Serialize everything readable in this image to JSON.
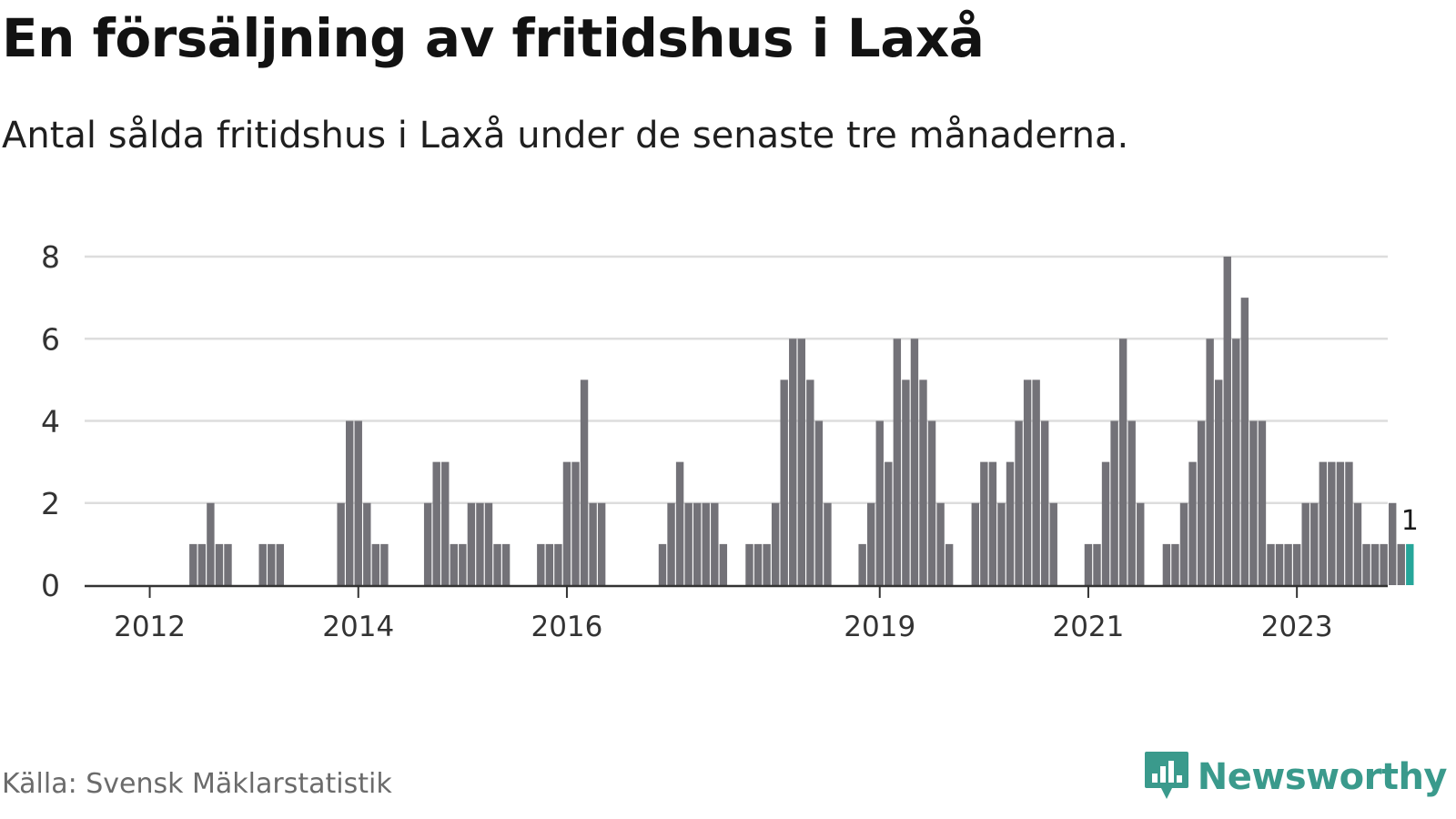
{
  "title": "En försäljning av fritidshus i Laxå",
  "subtitle": "Antal sålda fritidshus i Laxå under de senaste tre månaderna.",
  "source": "Källa: Svensk Mäklarstatistik",
  "brand": "Newsworthy",
  "colors": {
    "bar": "#737278",
    "highlight": "#26a69a",
    "brand": "#3a9a8c",
    "grid": "#dddddd",
    "axis": "#333333"
  },
  "chart_data": {
    "type": "bar",
    "x_axis_ticks": [
      "2012",
      "2014",
      "2016",
      "2019",
      "2021",
      "2023"
    ],
    "y_axis_ticks": [
      "0",
      "2",
      "4",
      "6",
      "8"
    ],
    "ylim": [
      0,
      8
    ],
    "grid": true,
    "highlight_label": "1",
    "values": [
      0,
      0,
      0,
      0,
      0,
      0,
      0,
      0,
      0,
      0,
      0,
      0,
      1,
      1,
      2,
      1,
      1,
      0,
      0,
      0,
      1,
      1,
      1,
      0,
      0,
      0,
      0,
      0,
      0,
      2,
      4,
      4,
      2,
      1,
      1,
      0,
      0,
      0,
      0,
      2,
      3,
      3,
      1,
      1,
      2,
      2,
      2,
      1,
      1,
      0,
      0,
      0,
      1,
      1,
      1,
      3,
      3,
      5,
      2,
      2,
      0,
      0,
      0,
      0,
      0,
      0,
      1,
      2,
      3,
      2,
      2,
      2,
      2,
      1,
      0,
      0,
      1,
      1,
      1,
      2,
      5,
      6,
      6,
      5,
      4,
      2,
      0,
      0,
      0,
      1,
      2,
      4,
      3,
      6,
      5,
      6,
      5,
      4,
      2,
      1,
      0,
      0,
      2,
      3,
      3,
      2,
      3,
      4,
      5,
      5,
      4,
      2,
      0,
      0,
      0,
      1,
      1,
      3,
      4,
      6,
      4,
      2,
      0,
      0,
      1,
      1,
      2,
      3,
      4,
      6,
      5,
      8,
      6,
      7,
      4,
      4,
      1,
      1,
      1,
      1,
      2,
      2,
      3,
      3,
      3,
      3,
      2,
      1,
      1,
      1,
      2,
      1,
      1
    ]
  }
}
